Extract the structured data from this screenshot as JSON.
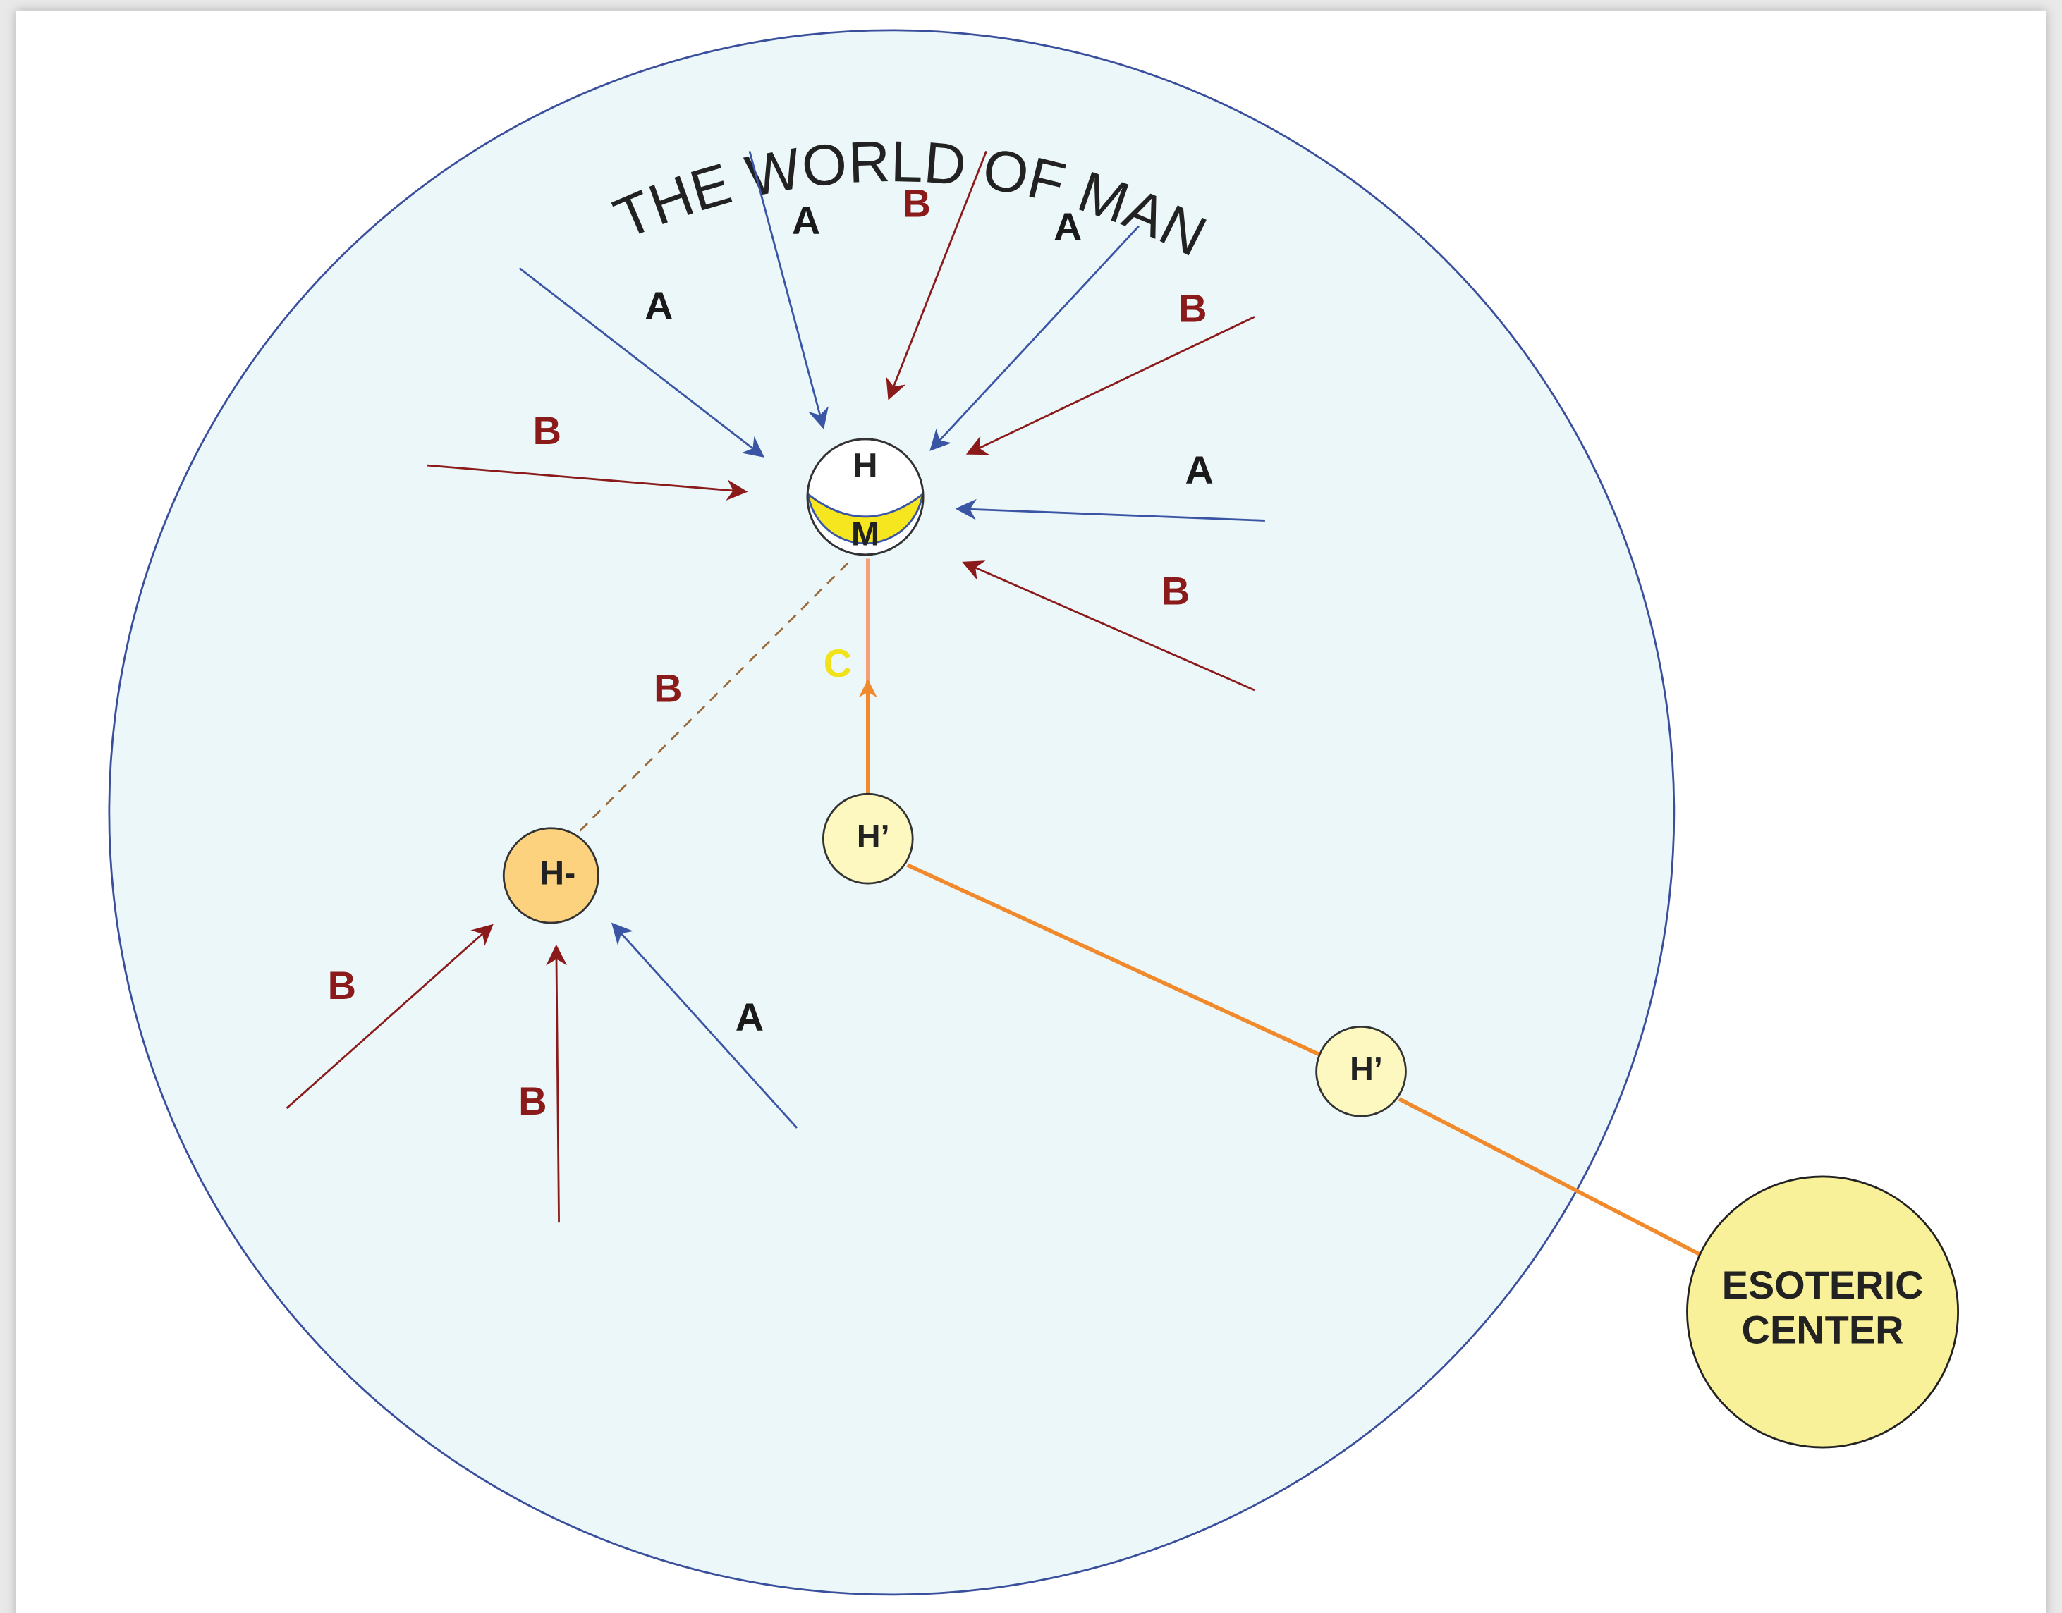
{
  "title": "THE WORLD OF MAN",
  "center": {
    "top": "H",
    "bottom": "M"
  },
  "nodes": [
    {
      "label": "H-"
    },
    {
      "label": "H’"
    },
    {
      "label": "H’"
    },
    {
      "lines": [
        "ESOTERIC",
        "CENTER"
      ]
    }
  ],
  "influences": [
    "A",
    "A",
    "B",
    "A",
    "B",
    "B",
    "A",
    "B",
    "B",
    "C",
    "B",
    "B",
    "A"
  ]
}
